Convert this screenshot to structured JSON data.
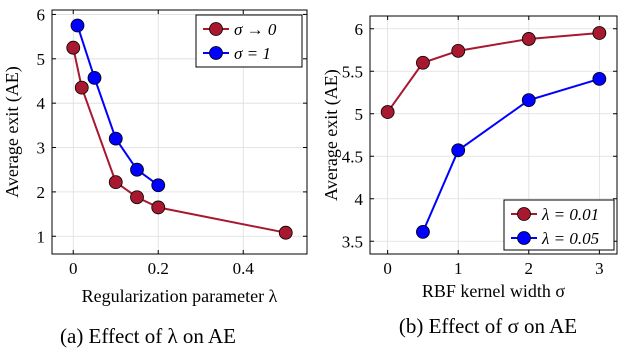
{
  "colors": {
    "series_red": "#A8182F",
    "series_blue": "#0000FF",
    "grid": "#dddddd",
    "axis": "#000000"
  },
  "chart_data": [
    {
      "type": "line",
      "caption": "(a) Effect of λ on AE",
      "xlabel": "Regularization parameter λ",
      "ylabel": "Average exit (AE)",
      "xlim": [
        -0.05,
        0.55
      ],
      "ylim": [
        0.6,
        6.1
      ],
      "xticks": [
        0,
        0.2,
        0.4
      ],
      "xtick_labels": [
        "0",
        "0.2",
        "0.4"
      ],
      "yticks": [
        1,
        2,
        3,
        4,
        5,
        6
      ],
      "ytick_labels": [
        "1",
        "2",
        "3",
        "4",
        "5",
        "6"
      ],
      "grid": true,
      "legend_position": "top-right",
      "series": [
        {
          "name": "σ → 0",
          "color": "#A8182F",
          "x": [
            0,
            0.02,
            0.1,
            0.15,
            0.2,
            0.5
          ],
          "y": [
            5.25,
            4.35,
            2.22,
            1.88,
            1.65,
            1.08
          ]
        },
        {
          "name": "σ = 1",
          "color": "#0000FF",
          "x": [
            0.01,
            0.05,
            0.1,
            0.15,
            0.2
          ],
          "y": [
            5.75,
            4.57,
            3.2,
            2.5,
            2.15
          ]
        }
      ]
    },
    {
      "type": "line",
      "caption": "(b) Effect of σ on AE",
      "xlabel": "RBF kernel width σ",
      "ylabel": "Average exit (AE)",
      "xlim": [
        -0.25,
        3.25
      ],
      "ylim": [
        3.35,
        6.15
      ],
      "xticks": [
        0,
        1,
        2,
        3
      ],
      "xtick_labels": [
        "0",
        "1",
        "2",
        "3"
      ],
      "yticks": [
        3.5,
        4,
        4.5,
        5,
        5.5,
        6
      ],
      "ytick_labels": [
        "3.5",
        "4",
        "4.5",
        "5",
        "5.5",
        "6"
      ],
      "grid": true,
      "legend_position": "bottom-right",
      "series": [
        {
          "name": "λ = 0.01",
          "color": "#A8182F",
          "x": [
            0,
            0.5,
            1,
            2,
            3
          ],
          "y": [
            5.02,
            5.6,
            5.74,
            5.88,
            5.95
          ]
        },
        {
          "name": "λ = 0.05",
          "color": "#0000FF",
          "x": [
            0.5,
            1,
            2,
            3
          ],
          "y": [
            3.61,
            4.57,
            5.16,
            5.41
          ]
        }
      ]
    }
  ]
}
